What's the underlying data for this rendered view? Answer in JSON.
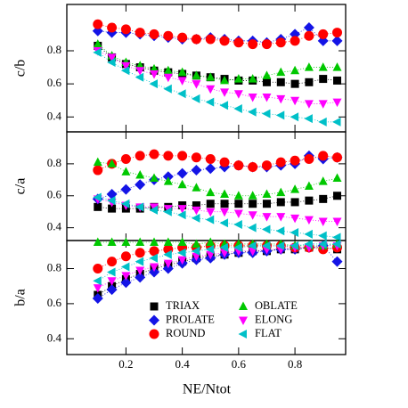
{
  "chart_data": {
    "type": "scatter",
    "xlabel": "NE/Ntot",
    "x": [
      0.1,
      0.15,
      0.2,
      0.25,
      0.3,
      0.35,
      0.4,
      0.45,
      0.5,
      0.55,
      0.6,
      0.65,
      0.7,
      0.75,
      0.8,
      0.85,
      0.9,
      0.95
    ],
    "xlim": [
      -0.01,
      0.98
    ],
    "xticks": [
      0.2,
      0.4,
      0.6,
      0.8
    ],
    "legend": "lower-center",
    "series": [
      {
        "name": "TRIAX",
        "color": "#000000",
        "marker": "square"
      },
      {
        "name": "PROLATE",
        "color": "#1414e6",
        "marker": "diamond"
      },
      {
        "name": "ROUND",
        "color": "#ff0000",
        "marker": "circle"
      },
      {
        "name": "OBLATE",
        "color": "#00c800",
        "marker": "triangle-up"
      },
      {
        "name": "ELONG",
        "color": "#ff00ff",
        "marker": "triangle-down"
      },
      {
        "name": "FLAT",
        "color": "#00c0c8",
        "marker": "triangle-left"
      }
    ],
    "panels": [
      {
        "ylabel": "c/b",
        "ylim": [
          0.31,
          1.08
        ],
        "yticks": [
          0.4,
          0.6,
          0.8
        ],
        "values": [
          [
            0.83,
            0.76,
            0.72,
            0.7,
            0.68,
            0.67,
            0.66,
            0.65,
            0.64,
            0.63,
            0.62,
            0.62,
            0.61,
            0.61,
            0.6,
            0.61,
            0.63,
            0.62
          ],
          [
            0.92,
            0.91,
            0.91,
            0.9,
            0.89,
            0.88,
            0.87,
            0.87,
            0.88,
            0.87,
            0.86,
            0.86,
            0.85,
            0.87,
            0.9,
            0.94,
            0.86,
            0.86
          ],
          [
            0.96,
            0.94,
            0.93,
            0.91,
            0.9,
            0.89,
            0.88,
            0.87,
            0.87,
            0.86,
            0.85,
            0.84,
            0.84,
            0.85,
            0.86,
            0.89,
            0.9,
            0.91
          ],
          [
            0.84,
            0.77,
            0.73,
            0.71,
            0.69,
            0.68,
            0.67,
            0.65,
            0.64,
            0.62,
            0.63,
            0.63,
            0.65,
            0.67,
            0.68,
            0.7,
            0.7,
            0.7
          ],
          [
            0.8,
            0.76,
            0.71,
            0.68,
            0.66,
            0.64,
            0.62,
            0.6,
            0.57,
            0.55,
            0.54,
            0.52,
            0.52,
            0.51,
            0.5,
            0.48,
            0.48,
            0.49
          ],
          [
            0.79,
            0.73,
            0.68,
            0.64,
            0.6,
            0.57,
            0.54,
            0.51,
            0.49,
            0.47,
            0.45,
            0.43,
            0.42,
            0.41,
            0.4,
            0.39,
            0.37,
            0.37
          ]
        ]
      },
      {
        "ylabel": "c/a",
        "ylim": [
          0.32,
          1.0
        ],
        "yticks": [
          0.4,
          0.6,
          0.8
        ],
        "values": [
          [
            0.53,
            0.52,
            0.52,
            0.52,
            0.53,
            0.53,
            0.54,
            0.54,
            0.55,
            0.55,
            0.55,
            0.55,
            0.55,
            0.56,
            0.56,
            0.57,
            0.58,
            0.6
          ],
          [
            0.58,
            0.61,
            0.64,
            0.67,
            0.7,
            0.72,
            0.74,
            0.76,
            0.77,
            0.78,
            0.79,
            0.78,
            0.78,
            0.79,
            0.8,
            0.85,
            0.83,
            0.84
          ],
          [
            0.76,
            0.8,
            0.83,
            0.85,
            0.86,
            0.85,
            0.85,
            0.84,
            0.83,
            0.81,
            0.79,
            0.78,
            0.79,
            0.81,
            0.82,
            0.83,
            0.85,
            0.84
          ],
          [
            0.81,
            0.8,
            0.75,
            0.73,
            0.71,
            0.69,
            0.67,
            0.65,
            0.62,
            0.61,
            0.6,
            0.6,
            0.61,
            0.62,
            0.64,
            0.66,
            0.69,
            0.71
          ],
          [
            0.58,
            0.56,
            0.54,
            0.53,
            0.53,
            0.52,
            0.52,
            0.51,
            0.5,
            0.5,
            0.49,
            0.48,
            0.47,
            0.47,
            0.46,
            0.45,
            0.44,
            0.44
          ],
          [
            0.59,
            0.57,
            0.55,
            0.53,
            0.51,
            0.5,
            0.48,
            0.46,
            0.45,
            0.43,
            0.42,
            0.4,
            0.39,
            0.38,
            0.37,
            0.36,
            0.35,
            0.34
          ]
        ]
      },
      {
        "ylabel": "b/a",
        "ylim": [
          0.31,
          0.96
        ],
        "yticks": [
          0.4,
          0.6,
          0.8
        ],
        "values": [
          [
            0.65,
            0.7,
            0.74,
            0.77,
            0.8,
            0.82,
            0.84,
            0.86,
            0.87,
            0.88,
            0.89,
            0.9,
            0.9,
            0.91,
            0.91,
            0.92,
            0.92,
            0.91
          ],
          [
            0.63,
            0.68,
            0.72,
            0.75,
            0.78,
            0.8,
            0.83,
            0.85,
            0.86,
            0.88,
            0.89,
            0.89,
            0.9,
            0.91,
            0.91,
            0.92,
            0.93,
            0.84
          ],
          [
            0.8,
            0.84,
            0.87,
            0.89,
            0.9,
            0.91,
            0.92,
            0.92,
            0.93,
            0.93,
            0.93,
            0.93,
            0.93,
            0.93,
            0.92,
            0.92,
            0.91,
            0.92
          ],
          [
            0.95,
            0.95,
            0.95,
            0.95,
            0.95,
            0.95,
            0.95,
            0.94,
            0.95,
            0.94,
            0.94,
            0.94,
            0.94,
            0.94,
            0.93,
            0.93,
            0.93,
            0.94
          ],
          [
            0.69,
            0.73,
            0.76,
            0.79,
            0.81,
            0.83,
            0.85,
            0.87,
            0.88,
            0.89,
            0.9,
            0.9,
            0.91,
            0.91,
            0.92,
            0.92,
            0.93,
            0.93
          ],
          [
            0.73,
            0.78,
            0.81,
            0.84,
            0.86,
            0.88,
            0.89,
            0.9,
            0.91,
            0.92,
            0.92,
            0.93,
            0.93,
            0.93,
            0.93,
            0.94,
            0.94,
            0.94
          ]
        ]
      }
    ]
  }
}
